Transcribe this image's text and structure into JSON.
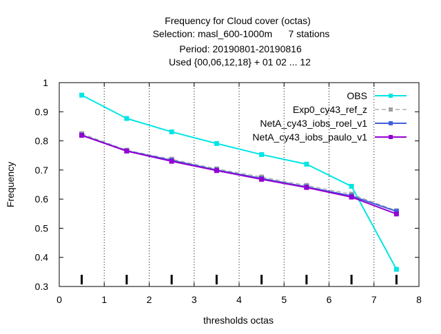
{
  "chart_data": {
    "type": "line",
    "title_lines": [
      "Frequency  for Cloud cover (octas)",
      "Selection: masl_600-1000m      7 stations",
      "Period: 20190801-20190816",
      "Used {00,06,12,18} + 01 02 ... 12"
    ],
    "xlabel": "thresholds octas",
    "ylabel": "Frequency",
    "xlim": [
      0,
      8
    ],
    "ylim": [
      0.3,
      1.0
    ],
    "x_ticks": [
      "0",
      "1",
      "2",
      "3",
      "4",
      "5",
      "6",
      "7",
      "8"
    ],
    "y_ticks": [
      "0.3",
      "0.4",
      "0.5",
      "0.6",
      "0.7",
      "0.8",
      "0.9",
      "1"
    ],
    "grid": "vertical dotted lines at each x tick",
    "legend_position": "top-right",
    "x": [
      0.5,
      1.5,
      2.5,
      3.5,
      4.5,
      5.5,
      6.5,
      7.5
    ],
    "series": [
      {
        "name": "OBS",
        "color": "#00e5e5",
        "dash": "solid",
        "values": [
          0.957,
          0.877,
          0.831,
          0.791,
          0.753,
          0.72,
          0.644,
          0.359
        ]
      },
      {
        "name": "Exp0_cy43_ref_z",
        "color": "#a0a0a0",
        "dash": "dashed",
        "values": [
          0.825,
          0.768,
          0.737,
          0.704,
          0.676,
          0.647,
          0.617,
          0.56
        ]
      },
      {
        "name": "NetA_cy43_iobs_roel_v1",
        "color": "#4060d8",
        "dash": "solid",
        "values": [
          0.82,
          0.766,
          0.733,
          0.7,
          0.671,
          0.642,
          0.611,
          0.558
        ]
      },
      {
        "name": "NetA_cy43_iobs_paulo_v1",
        "color": "#9400d3",
        "dash": "solid",
        "values": [
          0.819,
          0.765,
          0.73,
          0.698,
          0.668,
          0.64,
          0.607,
          0.549
        ]
      }
    ],
    "sample_marks_at_x": [
      0.5,
      1.5,
      2.5,
      3.5,
      4.5,
      5.5,
      6.5,
      7.5
    ]
  }
}
